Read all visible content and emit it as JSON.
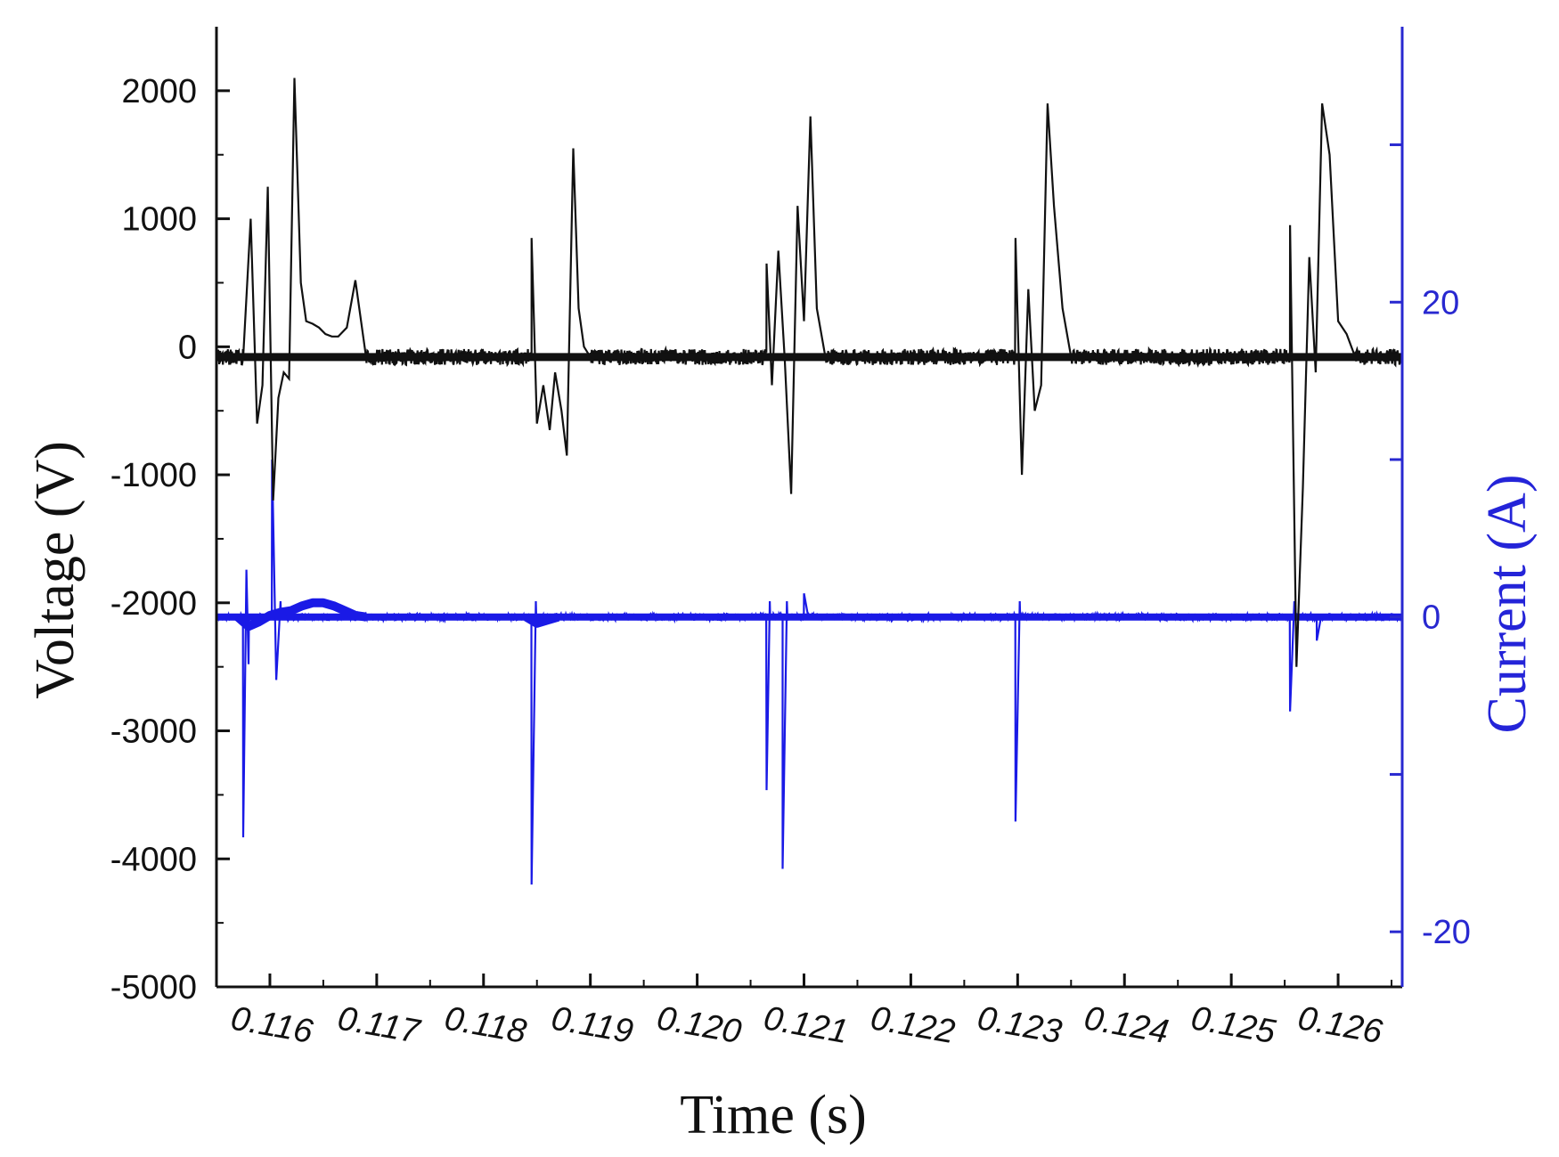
{
  "chart_data": {
    "type": "line",
    "xlabel": "Time (s)",
    "ylabel_left": "Voltage (V)",
    "ylabel_right": "Current (A)",
    "xlim": [
      0.1155,
      0.1266
    ],
    "ylim_left": [
      -5000,
      2500
    ],
    "ylim_right": [
      -23.5,
      37.5
    ],
    "x_ticks": [
      "0.116",
      "0.117",
      "0.118",
      "0.119",
      "0.120",
      "0.121",
      "0.122",
      "0.123",
      "0.124",
      "0.125",
      "0.126"
    ],
    "y_left_ticks": [
      "2000",
      "1000",
      "0",
      "-1000",
      "-2000",
      "-3000",
      "-4000",
      "-5000"
    ],
    "y_right_ticks": [
      "20",
      "0",
      "-20"
    ],
    "grid": false,
    "colors": {
      "voltage": "#111111",
      "current": "#1a1ae6",
      "right_axis": "#2828d0"
    },
    "series": [
      {
        "axis": "left",
        "baseline": -80,
        "events": [
          {
            "x": [
              0.11575,
              0.11582,
              0.11588,
              0.11593,
              0.11598,
              0.11603,
              0.11608,
              0.11613,
              0.11618,
              0.11623,
              0.11629,
              0.11634,
              0.1164,
              0.11646,
              0.11652,
              0.11658,
              0.11664,
              0.11672,
              0.1168,
              0.1169
            ],
            "y": [
              -80,
              1000,
              -600,
              -300,
              1250,
              -1200,
              -400,
              -200,
              -250,
              2100,
              500,
              200,
              180,
              150,
              100,
              80,
              80,
              150,
              520,
              -80
            ]
          },
          {
            "x": [
              0.11845,
              0.1185,
              0.11856,
              0.11862,
              0.11867,
              0.11873,
              0.11878,
              0.11884,
              0.11889,
              0.11894,
              0.119
            ],
            "y": [
              850,
              -600,
              -300,
              -650,
              -200,
              -500,
              -850,
              1550,
              300,
              0,
              -80
            ]
          },
          {
            "x": [
              0.12065,
              0.1207,
              0.12076,
              0.12082,
              0.12088,
              0.12094,
              0.121,
              0.12106,
              0.12112,
              0.1212
            ],
            "y": [
              650,
              -300,
              750,
              -100,
              -1150,
              1100,
              200,
              1800,
              300,
              -80
            ]
          },
          {
            "x": [
              0.12298,
              0.12304,
              0.1231,
              0.12316,
              0.12322,
              0.12328,
              0.12334,
              0.12342,
              0.1235
            ],
            "y": [
              850,
              -1000,
              450,
              -500,
              -300,
              1900,
              1100,
              300,
              -80
            ]
          },
          {
            "x": [
              0.12555,
              0.12561,
              0.12567,
              0.12573,
              0.12579,
              0.12585,
              0.12592,
              0.126,
              0.12608,
              0.12616
            ],
            "y": [
              950,
              -2500,
              -1100,
              700,
              -200,
              1900,
              1500,
              200,
              100,
              -80
            ]
          }
        ]
      },
      {
        "axis": "right",
        "baseline": 0,
        "events": [
          {
            "x": [
              0.11575,
              0.11578,
              0.1158
            ],
            "y": [
              -14,
              3,
              -3
            ]
          },
          {
            "x": [
              0.11602,
              0.11606,
              0.1161
            ],
            "y": [
              10,
              -4,
              1
            ]
          },
          {
            "x": [
              0.11845,
              0.11849
            ],
            "y": [
              -17,
              1
            ]
          },
          {
            "x": [
              0.12065,
              0.12068
            ],
            "y": [
              -11,
              1
            ]
          },
          {
            "x": [
              0.1208,
              0.12084
            ],
            "y": [
              -16,
              1
            ]
          },
          {
            "x": [
              0.121,
              0.12104
            ],
            "y": [
              1.5,
              0
            ]
          },
          {
            "x": [
              0.12298,
              0.12302
            ],
            "y": [
              -13,
              1
            ]
          },
          {
            "x": [
              0.12555,
              0.12559
            ],
            "y": [
              -6,
              1
            ]
          },
          {
            "x": [
              0.1258,
              0.12584
            ],
            "y": [
              -1.5,
              0
            ]
          }
        ],
        "bumps": [
          {
            "x": [
              0.1157,
              0.1158,
              0.1159,
              0.116,
              0.1161,
              0.1162,
              0.1163,
              0.1164,
              0.1165,
              0.1166,
              0.1167,
              0.1168,
              0.1169
            ],
            "y": [
              0,
              -0.6,
              -0.3,
              0.1,
              0.3,
              0.4,
              0.7,
              0.9,
              0.9,
              0.7,
              0.4,
              0.1,
              0
            ]
          },
          {
            "x": [
              0.1184,
              0.1185,
              0.1186,
              0.1187
            ],
            "y": [
              0,
              -0.4,
              -0.2,
              0
            ]
          }
        ]
      }
    ]
  }
}
